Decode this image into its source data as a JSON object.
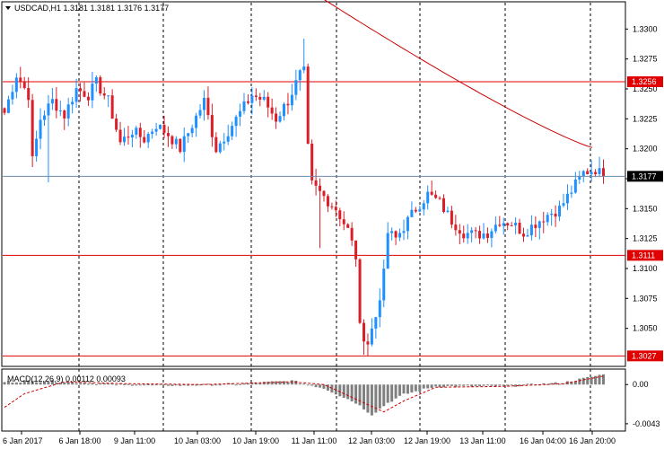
{
  "symbol_header": "USDCAD,H1  1.3181 1.3181 1.3176 1.3177",
  "macd_header": "MACD(12,26,9) 0.00112 0.00093",
  "colors": {
    "bull": "#1e90ff",
    "bear": "#dc1e28",
    "hline": "#e00000",
    "price_line": "#6c8cab",
    "ma_line": "#cc0000",
    "signal": "#cc0000",
    "hist": "#808080",
    "vgrid": "#000000",
    "frame": "#000000"
  },
  "chart_data": [
    {
      "type": "candlestick",
      "timeframe": "H1",
      "ylim": [
        1.3019,
        1.3322
      ],
      "y_ticks": [
        "1.3300",
        "1.3275",
        "1.3250",
        "1.3225",
        "1.3200",
        "1.3175",
        "1.3150",
        "1.3125",
        "1.3100",
        "1.3075",
        "1.3050"
      ],
      "x_ticks": [
        "6 Jan 2017",
        "6 Jan 18:00",
        "9 Jan 11:00",
        "10 Jan 03:00",
        "10 Jan 19:00",
        "11 Jan 11:00",
        "12 Jan 03:00",
        "12 Jan 19:00",
        "13 Jan 11:00",
        "16 Jan 04:00",
        "16 Jan 20:00"
      ],
      "vertical_grid_at_ticks": [
        1,
        2,
        3,
        4,
        5,
        6,
        7,
        8,
        9,
        10
      ],
      "horizontal_levels": [
        {
          "label": "1.3256",
          "value": 1.3256
        },
        {
          "label": "1.3111",
          "value": 1.3111
        },
        {
          "label": "1.3027",
          "value": 1.3027
        }
      ],
      "current_price": {
        "label": "1.3177",
        "value": 1.3177
      },
      "moving_average": {
        "from_tick": 5,
        "from_value": 1.333,
        "to_tick": 10.4,
        "to_value": 1.3201
      },
      "anchors": [
        [
          0,
          1.323
        ],
        [
          3,
          1.3262
        ],
        [
          6,
          1.3245
        ],
        [
          7,
          1.319
        ],
        [
          9,
          1.3225
        ],
        [
          12,
          1.324
        ],
        [
          15,
          1.3228
        ],
        [
          18,
          1.325
        ],
        [
          21,
          1.3245
        ],
        [
          23,
          1.3255
        ],
        [
          26,
          1.324
        ],
        [
          29,
          1.3205
        ],
        [
          32,
          1.3215
        ],
        [
          35,
          1.3208
        ],
        [
          38,
          1.322
        ],
        [
          41,
          1.3212
        ],
        [
          44,
          1.32
        ],
        [
          47,
          1.322
        ],
        [
          50,
          1.324
        ],
        [
          53,
          1.32
        ],
        [
          56,
          1.3215
        ],
        [
          59,
          1.323
        ],
        [
          62,
          1.3245
        ],
        [
          65,
          1.324
        ],
        [
          68,
          1.3225
        ],
        [
          71,
          1.324
        ],
        [
          74,
          1.3262
        ],
        [
          75,
          1.3264
        ],
        [
          76,
          1.32
        ],
        [
          77,
          1.317
        ],
        [
          80,
          1.316
        ],
        [
          83,
          1.315
        ],
        [
          86,
          1.3132
        ],
        [
          88,
          1.311
        ],
        [
          89,
          1.305
        ],
        [
          91,
          1.3038
        ],
        [
          93,
          1.306
        ],
        [
          95,
          1.3095
        ],
        [
          96,
          1.313
        ],
        [
          98,
          1.3125
        ],
        [
          100,
          1.3135
        ],
        [
          103,
          1.315
        ],
        [
          106,
          1.3162
        ],
        [
          109,
          1.3155
        ],
        [
          112,
          1.314
        ],
        [
          115,
          1.313
        ],
        [
          118,
          1.3128
        ],
        [
          121,
          1.313
        ],
        [
          124,
          1.314
        ],
        [
          127,
          1.3138
        ],
        [
          130,
          1.313
        ],
        [
          133,
          1.3138
        ],
        [
          136,
          1.3145
        ],
        [
          139,
          1.315
        ],
        [
          142,
          1.3165
        ],
        [
          145,
          1.318
        ],
        [
          148,
          1.3183
        ],
        [
          150,
          1.3177
        ]
      ]
    },
    {
      "type": "bar",
      "title": "MACD(12,26,9)",
      "ylim": [
        -0.005,
        0.0016
      ],
      "y_ticks": [
        "0.00",
        "-0.0043"
      ],
      "y_tick_values": [
        0.0,
        -0.0043
      ],
      "macd_anchors": [
        [
          0,
          0.0003
        ],
        [
          10,
          0.0004
        ],
        [
          30,
          0.0
        ],
        [
          45,
          -0.0001
        ],
        [
          60,
          0.0001
        ],
        [
          72,
          0.0004
        ],
        [
          80,
          -0.0004
        ],
        [
          88,
          -0.002
        ],
        [
          92,
          -0.0033
        ],
        [
          96,
          -0.002
        ],
        [
          100,
          -0.0011
        ],
        [
          108,
          -0.0002
        ],
        [
          125,
          -0.0002
        ],
        [
          140,
          0.0002
        ],
        [
          150,
          0.00112
        ]
      ],
      "signal_anchors": [
        [
          0,
          -0.0025
        ],
        [
          5,
          -0.001
        ],
        [
          15,
          0.0003
        ],
        [
          30,
          0.0001
        ],
        [
          50,
          0.0
        ],
        [
          72,
          0.0003
        ],
        [
          80,
          0.0
        ],
        [
          90,
          -0.002
        ],
        [
          95,
          -0.003
        ],
        [
          100,
          -0.0018
        ],
        [
          108,
          -0.0003
        ],
        [
          125,
          -0.0002
        ],
        [
          140,
          0.0001
        ],
        [
          150,
          0.00093
        ]
      ],
      "last_macd": "0.00112",
      "last_signal": "0.00093"
    }
  ]
}
